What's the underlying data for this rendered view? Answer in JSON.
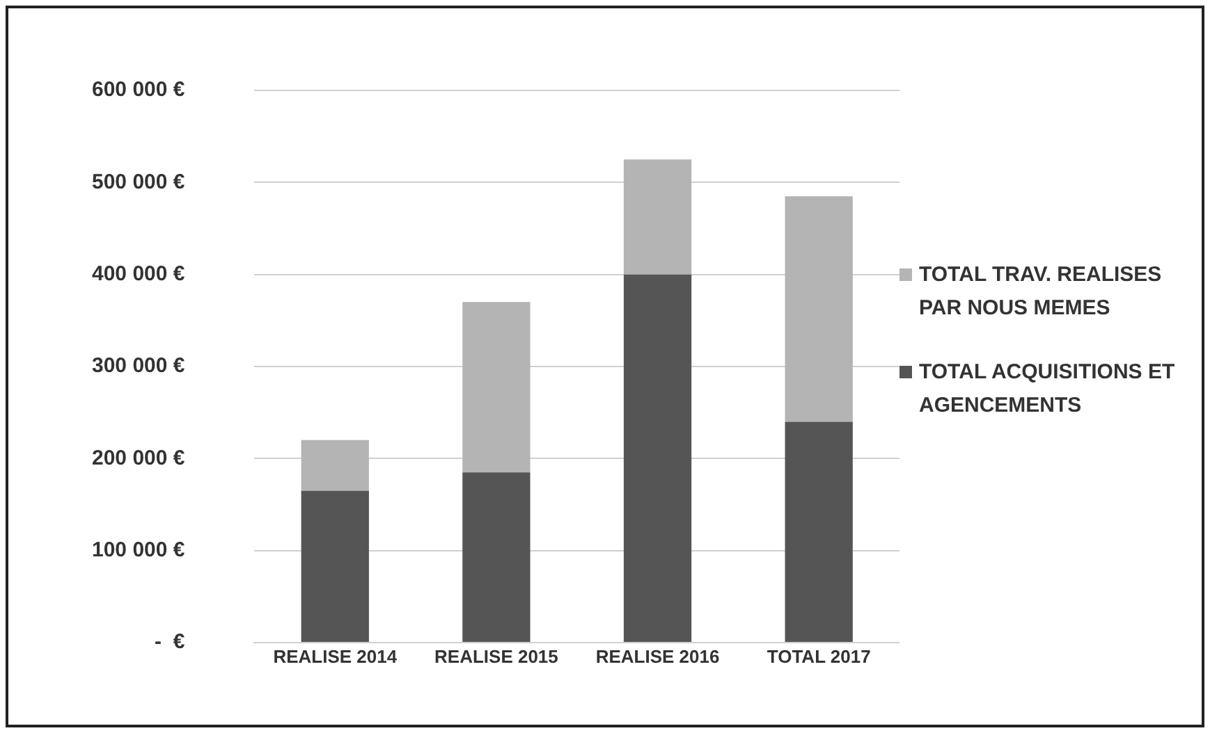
{
  "chart_data": {
    "type": "bar",
    "stacked": true,
    "categories": [
      "REALISE 2014",
      "REALISE 2015",
      "REALISE 2016",
      "TOTAL 2017"
    ],
    "series": [
      {
        "name": "TOTAL ACQUISITIONS  ET AGENCEMENTS",
        "color": "#555555",
        "values": [
          165000,
          185000,
          400000,
          240000
        ]
      },
      {
        "name": "TOTAL TRAV. REALISES PAR NOUS MEMES",
        "color": "#b4b4b4",
        "values": [
          55000,
          185000,
          125000,
          245000
        ]
      }
    ],
    "ylim": [
      0,
      600000
    ],
    "yticks": [
      {
        "value": 0,
        "label": "-  €"
      },
      {
        "value": 100000,
        "label": "100 000 €"
      },
      {
        "value": 200000,
        "label": "200 000 €"
      },
      {
        "value": 300000,
        "label": "300 000 €"
      },
      {
        "value": 400000,
        "label": "400 000 €"
      },
      {
        "value": 500000,
        "label": "500 000 €"
      },
      {
        "value": 600000,
        "label": "600 000 €"
      }
    ],
    "grid": "y",
    "legend": "right"
  }
}
